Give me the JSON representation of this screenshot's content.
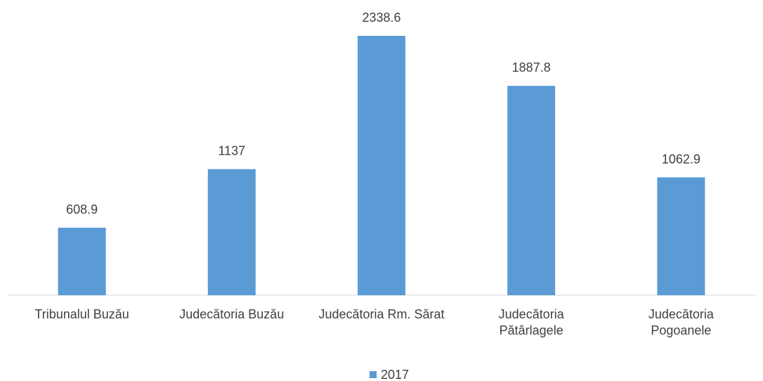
{
  "chart_data": {
    "type": "bar",
    "categories": [
      "Tribunalul Buzău",
      "Judecătoria Buzău",
      "Judecătoria Rm. Sărat",
      "Judecătoria Pătârlagele",
      "Judecătoria Pogoanele"
    ],
    "series": [
      {
        "name": "2017",
        "color": "#5b9bd5",
        "values": [
          608.9,
          1137,
          2338.6,
          1887.8,
          1062.9
        ]
      }
    ],
    "legend": "bottom"
  }
}
